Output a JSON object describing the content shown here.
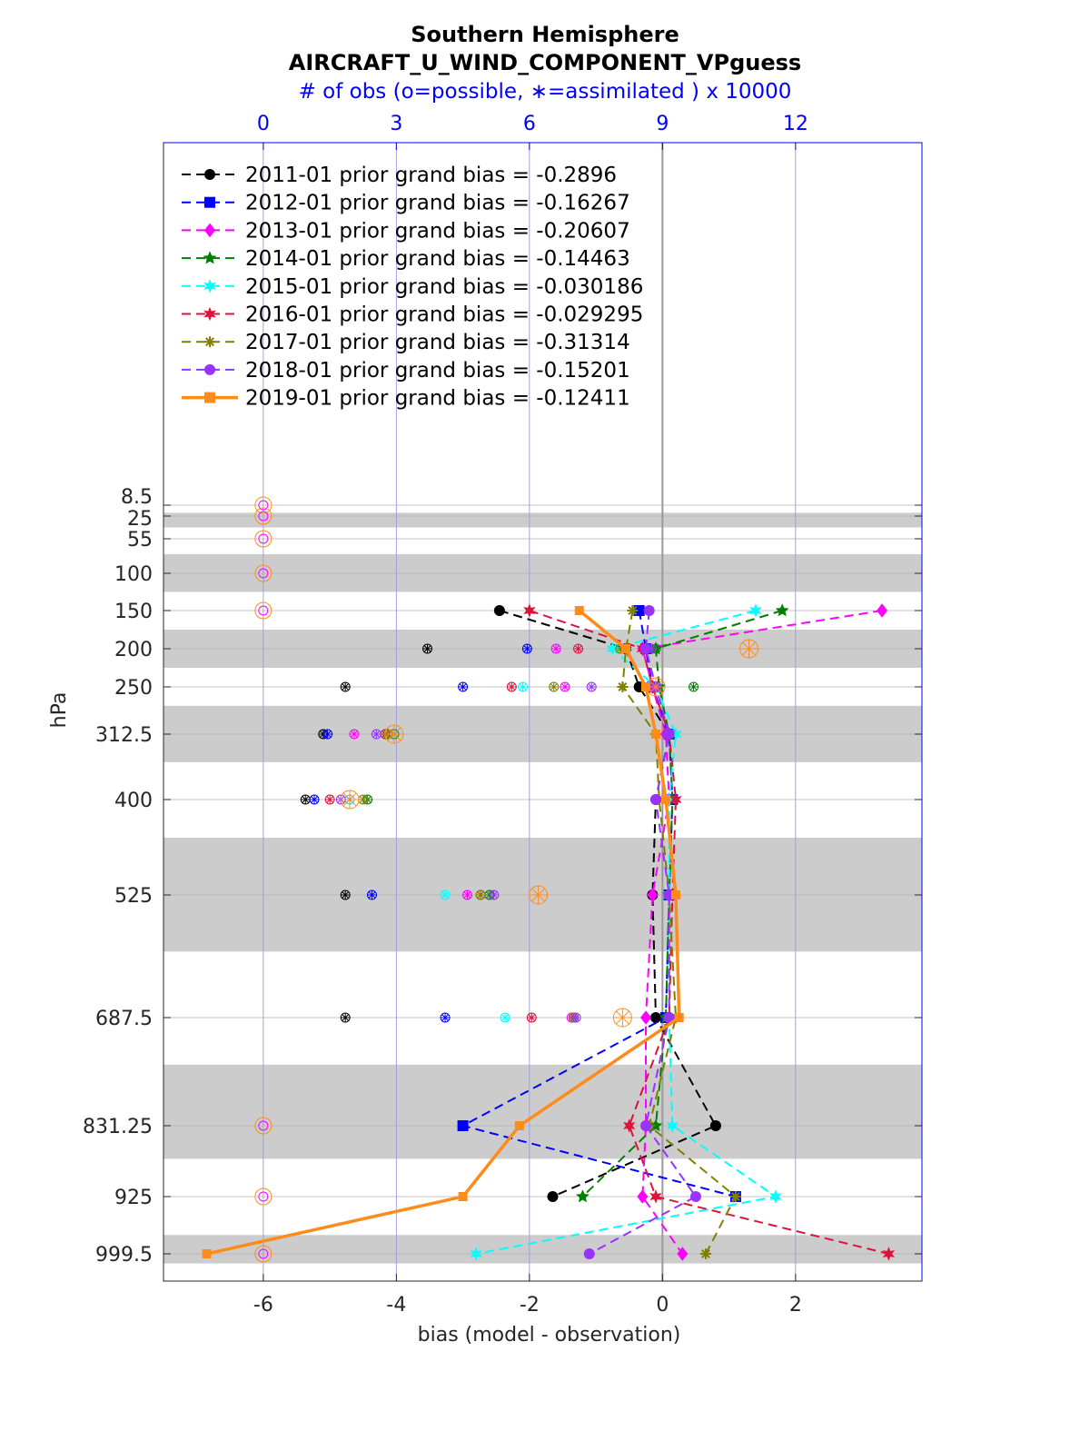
{
  "chart_data": {
    "type": "line",
    "title_line1": "Southern Hemisphere",
    "title_line2": "AIRCRAFT_U_WIND_COMPONENT_VPguess",
    "top_axis_label": "# of obs (o=possible, ∗=assimilated ) x 10000",
    "top_ticks": [
      "0",
      "3",
      "6",
      "9",
      "12"
    ],
    "top_tick_values": [
      0,
      3,
      6,
      9,
      12
    ],
    "xlabel": "bias (model - observation)",
    "ylabel": "hPa",
    "x_ticks": [
      "-6",
      "-4",
      "-2",
      "0",
      "2"
    ],
    "x_tick_values": [
      -6,
      -4,
      -2,
      0,
      2
    ],
    "xlim": [
      -7.5,
      3.9
    ],
    "levels": [
      8.5,
      25,
      55,
      100,
      150,
      200,
      250,
      312.5,
      400,
      525,
      687.5,
      831.25,
      925,
      999.5
    ],
    "level_labels": [
      "8.5",
      "25",
      "55",
      "100",
      "150",
      "200",
      "250",
      "312.5",
      "400",
      "525",
      "687.5",
      "831.25",
      "925",
      "999.5"
    ],
    "shaded_bands": [
      [
        20,
        40
      ],
      [
        75,
        125
      ],
      [
        175,
        225
      ],
      [
        275,
        350
      ],
      [
        450,
        600
      ],
      [
        750,
        875
      ],
      [
        975,
        1012
      ]
    ],
    "legend_location": "top-left",
    "series": [
      {
        "name": "2011-01 prior grand bias = -0.2896",
        "color": "#000000",
        "marker": "circle",
        "dash": "dashed",
        "levels": [
          150,
          200,
          250,
          312.5,
          400,
          525,
          687.5,
          831.25,
          925
        ],
        "bias": [
          -2.45,
          -0.55,
          -0.35,
          0.1,
          -0.1,
          -0.15,
          -0.1,
          0.8,
          -1.65
        ],
        "obs_level": [
          200,
          250,
          312.5,
          400,
          525,
          687.5
        ],
        "obs": [
          3.7,
          1.85,
          1.35,
          0.95,
          1.85,
          1.85
        ]
      },
      {
        "name": "2012-01 prior grand bias = -0.16267",
        "color": "#0000ff",
        "marker": "square",
        "dash": "dashed",
        "levels": [
          150,
          200,
          250,
          312.5,
          400,
          525,
          687.5,
          831.25,
          925
        ],
        "bias": [
          -0.35,
          -0.25,
          -0.15,
          0.1,
          0.15,
          0.1,
          0.05,
          -3.0,
          1.1
        ],
        "obs_level": [
          200,
          250,
          312.5,
          400,
          525,
          687.5
        ],
        "obs": [
          5.95,
          4.5,
          1.45,
          1.15,
          2.45,
          4.1
        ]
      },
      {
        "name": "2013-01 prior grand bias = -0.20607",
        "color": "#ff00ff",
        "marker": "diamond",
        "dash": "dashed",
        "levels": [
          150,
          200,
          250,
          312.5,
          400,
          525,
          687.5,
          831.25,
          925,
          999.5
        ],
        "bias": [
          3.3,
          -0.3,
          -0.15,
          0.05,
          0.1,
          -0.15,
          -0.25,
          -0.25,
          -0.3,
          0.3
        ],
        "obs_level": [
          200,
          250,
          312.5,
          400,
          525,
          687.5
        ],
        "obs": [
          6.6,
          6.8,
          2.05,
          1.95,
          4.6,
          6.95
        ]
      },
      {
        "name": "2014-01 prior grand bias = -0.14463",
        "color": "#008000",
        "marker": "star",
        "dash": "dashed",
        "levels": [
          150,
          200,
          250,
          312.5,
          400,
          525,
          687.5,
          831.25,
          925
        ],
        "bias": [
          1.8,
          -0.1,
          -0.05,
          0.1,
          0.15,
          0.1,
          0.05,
          -0.1,
          -1.2
        ],
        "obs_level": [
          200,
          250,
          312.5,
          400,
          525,
          687.5
        ],
        "obs": [
          8.85,
          9.7,
          2.95,
          2.35,
          5.1,
          7.0
        ]
      },
      {
        "name": "2015-01 prior grand bias = -0.030186",
        "color": "#00ffff",
        "marker": "hexagram",
        "dash": "dashed",
        "levels": [
          150,
          200,
          250,
          312.5,
          400,
          525,
          687.5,
          831.25,
          925,
          999.5
        ],
        "bias": [
          1.4,
          -0.75,
          -0.1,
          0.2,
          0.1,
          0.1,
          0.1,
          0.15,
          1.7,
          -2.8
        ],
        "obs_level": [
          200,
          250,
          312.5,
          400,
          525,
          687.5
        ],
        "obs": [
          8.0,
          5.85,
          2.75,
          1.95,
          4.1,
          5.45
        ]
      },
      {
        "name": "2016-01 prior grand bias = -0.029295",
        "color": "#dc143c",
        "marker": "hexagram",
        "dash": "dashed",
        "levels": [
          150,
          200,
          250,
          312.5,
          400,
          525,
          687.5,
          831.25,
          925,
          999.5
        ],
        "bias": [
          -2.0,
          -0.3,
          -0.15,
          0.1,
          0.2,
          0.15,
          0.1,
          -0.5,
          -0.1,
          3.4
        ],
        "obs_level": [
          200,
          250,
          312.5,
          400,
          525,
          687.5
        ],
        "obs": [
          7.1,
          5.6,
          2.75,
          1.5,
          4.9,
          6.05
        ]
      },
      {
        "name": "2017-01 prior grand bias = -0.31314",
        "color": "#808000",
        "marker": "asterisk",
        "dash": "dashed",
        "levels": [
          150,
          200,
          250,
          312.5,
          400,
          525,
          687.5,
          831.25,
          925,
          999.5
        ],
        "bias": [
          -0.45,
          -0.55,
          -0.6,
          -0.1,
          -0.05,
          0.1,
          0.2,
          -0.2,
          1.1,
          0.65
        ],
        "obs_level": [
          200,
          250,
          312.5,
          400,
          525,
          687.5
        ],
        "obs": [
          8.05,
          6.55,
          2.8,
          2.25,
          4.9,
          7.0
        ]
      },
      {
        "name": "2018-01 prior grand bias = -0.15201",
        "color": "#9932ff",
        "marker": "circle",
        "dash": "dashed",
        "levels": [
          150,
          200,
          250,
          312.5,
          400,
          525,
          687.5,
          831.25,
          925,
          999.5
        ],
        "bias": [
          -0.2,
          -0.25,
          -0.1,
          0.1,
          -0.1,
          0.1,
          0.1,
          -0.25,
          0.5,
          -1.1
        ],
        "obs_level": [
          200,
          250,
          312.5,
          400,
          525,
          687.5
        ],
        "obs": [
          8.75,
          7.4,
          2.55,
          1.75,
          5.2,
          7.05
        ]
      },
      {
        "name": "2019-01 prior grand bias = -0.12411",
        "color": "#ff8c1a",
        "marker": "square",
        "dash": "solid",
        "levels": [
          150,
          200,
          250,
          312.5,
          400,
          525,
          687.5,
          831.25,
          925,
          999.5
        ],
        "bias": [
          -1.25,
          -0.55,
          -0.25,
          -0.1,
          0.05,
          0.2,
          0.25,
          -2.15,
          -3.0,
          -6.85
        ],
        "obs_level": [
          200,
          250,
          312.5,
          400,
          525,
          687.5
        ],
        "obs": [
          10.95,
          8.85,
          2.95,
          1.95,
          6.2,
          8.1
        ]
      }
    ],
    "possible_only": {
      "levels": [
        8.5,
        25,
        55,
        100,
        150,
        831.25,
        925,
        999.5
      ],
      "obs": [
        0,
        0,
        0,
        0,
        0,
        0,
        0,
        0
      ]
    }
  }
}
